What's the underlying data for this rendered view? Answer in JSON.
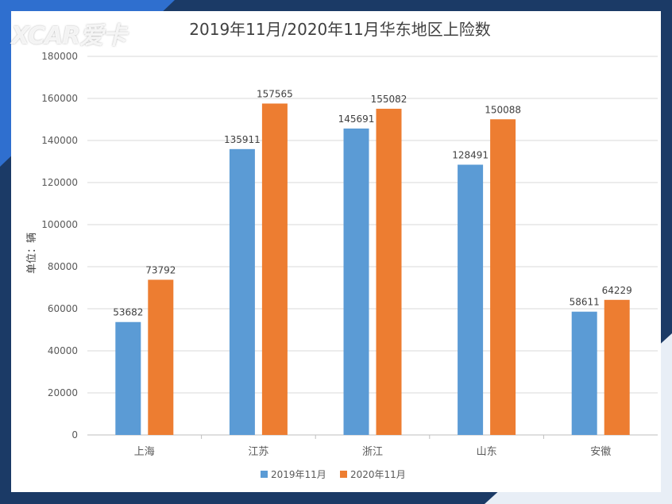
{
  "watermark": "XCAR爱卡",
  "chart_data": {
    "type": "bar",
    "title": "2019年11月/2020年11月华东地区上险数",
    "ylabel": "单位：辆",
    "xlabel": "",
    "categories": [
      "上海",
      "江苏",
      "浙江",
      "山东",
      "安徽"
    ],
    "series": [
      {
        "name": "2019年11月",
        "color": "#5b9bd5",
        "values": [
          53682,
          135911,
          145691,
          128491,
          58611
        ]
      },
      {
        "name": "2020年11月",
        "color": "#ed7d31",
        "values": [
          73792,
          157565,
          155082,
          150088,
          64229
        ]
      }
    ],
    "ylim": [
      0,
      180000
    ],
    "yticks": [
      0,
      20000,
      40000,
      60000,
      80000,
      100000,
      120000,
      140000,
      160000,
      180000
    ],
    "grid": true,
    "legend_position": "bottom"
  }
}
